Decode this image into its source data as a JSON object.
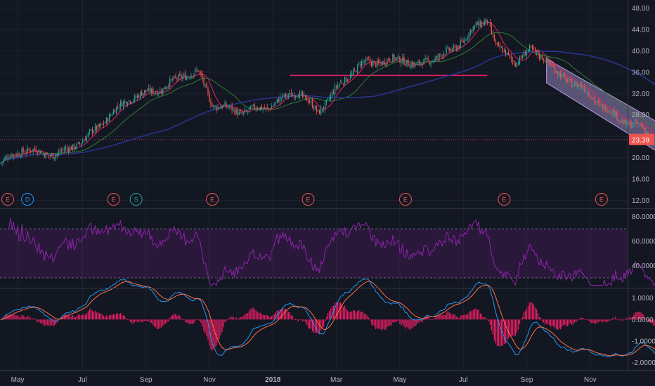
{
  "colors": {
    "background": "#131722",
    "grid": "#1f2431",
    "up": "#26a69a",
    "down": "#ef5350",
    "sma_fast": "#e91e63",
    "sma_mid": "#2e7d32",
    "sma_slow": "#283593",
    "channel": "#b39ddb",
    "rsi": "#8e24aa",
    "macd": "#2196f3",
    "signal": "#ff7043",
    "hist": "#e91e63",
    "price_tag": "#ef5350",
    "hline": "#e91e63",
    "event_earnings": "#ef5350",
    "event_dividend": "#2196f3",
    "event_split": "#26a69a"
  },
  "chart_data": [
    {
      "type": "candlestick",
      "panel": "price",
      "y_ticks": [
        "48.00",
        "44.00",
        "40.00",
        "36.00",
        "32.00",
        "28.00",
        "24.00",
        "20.00",
        "16.00",
        "12.00"
      ],
      "ylim": [
        10.5,
        49.5
      ],
      "last_price": "23.39",
      "horizontal_line": 35.4,
      "anchors": [
        [
          0,
          19.0
        ],
        [
          15,
          21.5
        ],
        [
          40,
          20.5
        ],
        [
          60,
          23.5
        ],
        [
          90,
          31.0
        ],
        [
          115,
          33.0
        ],
        [
          130,
          35.5
        ],
        [
          140,
          36.0
        ],
        [
          150,
          30.0
        ],
        [
          170,
          28.5
        ],
        [
          190,
          29.5
        ],
        [
          210,
          32.5
        ],
        [
          225,
          28.5
        ],
        [
          240,
          33.5
        ],
        [
          255,
          37.5
        ],
        [
          270,
          38.0
        ],
        [
          285,
          38.5
        ],
        [
          295,
          37.0
        ],
        [
          305,
          38.5
        ],
        [
          320,
          40.0
        ],
        [
          335,
          44.0
        ],
        [
          345,
          46.0
        ],
        [
          352,
          40.5
        ],
        [
          365,
          38.0
        ],
        [
          375,
          40.0
        ],
        [
          385,
          39.0
        ],
        [
          395,
          35.5
        ],
        [
          410,
          33.5
        ],
        [
          425,
          30.0
        ],
        [
          440,
          27.0
        ],
        [
          455,
          25.5
        ],
        [
          465,
          22.5
        ],
        [
          474,
          23.4
        ]
      ],
      "moving_averages": [
        {
          "name": "fast",
          "period": 10
        },
        {
          "name": "mid",
          "period": 30
        },
        {
          "name": "slow",
          "period": 120
        }
      ],
      "channel": {
        "start_index": 387,
        "end_index": 500,
        "top": [
          38.5,
          21.5
        ],
        "bottom": [
          34.0,
          15.5
        ]
      },
      "events": [
        {
          "label": "E",
          "index": 5
        },
        {
          "label": "D",
          "index": 19
        },
        {
          "label": "E",
          "index": 80
        },
        {
          "label": "S",
          "index": 96
        },
        {
          "label": "E",
          "index": 150
        },
        {
          "label": "E",
          "index": 218
        },
        {
          "label": "E",
          "index": 287
        },
        {
          "label": "E",
          "index": 357
        },
        {
          "label": "E",
          "index": 426
        }
      ]
    },
    {
      "type": "line",
      "panel": "rsi",
      "y_ticks": [
        "80.0000",
        "60.0000",
        "40.0000"
      ],
      "ylim": [
        22,
        86
      ],
      "band": [
        70,
        30
      ]
    },
    {
      "type": "line",
      "panel": "macd",
      "y_ticks": [
        "1.0000",
        "0.0000",
        "-1.0000",
        "-2.0000"
      ],
      "ylim": [
        -2.35,
        1.45
      ]
    }
  ],
  "x_axis": {
    "labels": [
      {
        "text": "May",
        "index": 12
      },
      {
        "text": "Jul",
        "index": 58
      },
      {
        "text": "Sep",
        "index": 103
      },
      {
        "text": "Nov",
        "index": 148
      },
      {
        "text": "2018",
        "index": 193
      },
      {
        "text": "Mar",
        "index": 238
      },
      {
        "text": "May",
        "index": 283
      },
      {
        "text": "Jul",
        "index": 328
      },
      {
        "text": "Sep",
        "index": 373
      },
      {
        "text": "Nov",
        "index": 418
      }
    ],
    "slots": 445
  }
}
